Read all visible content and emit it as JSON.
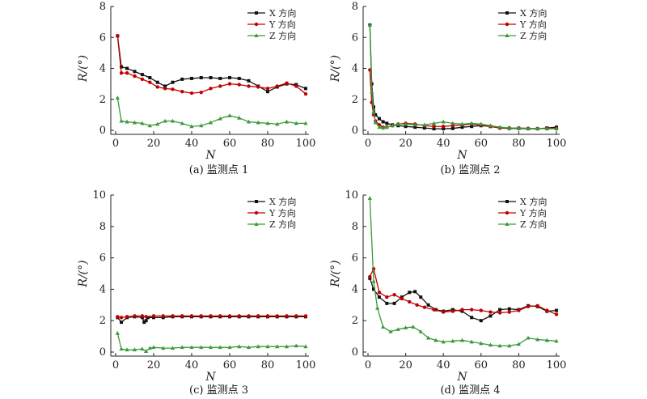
{
  "chart_data": [
    {
      "type": "line",
      "caption": "(a) 监测点 1",
      "xlabel": "N",
      "ylabel": "R/(°)",
      "xlim": [
        0,
        100
      ],
      "ylim": [
        0,
        8
      ],
      "xticks": [
        0,
        20,
        40,
        60,
        80,
        100
      ],
      "yticks": [
        0,
        2,
        4,
        6,
        8
      ],
      "legend_position": "top-right",
      "series": [
        {
          "name": "X 方向",
          "color": "#111111",
          "marker": "square",
          "x": [
            1,
            3,
            6,
            10,
            14,
            18,
            22,
            26,
            30,
            35,
            40,
            45,
            50,
            55,
            60,
            65,
            70,
            75,
            80,
            85,
            90,
            95,
            100
          ],
          "y": [
            6.1,
            4.1,
            4.0,
            3.8,
            3.6,
            3.4,
            3.1,
            2.85,
            3.1,
            3.3,
            3.35,
            3.4,
            3.4,
            3.35,
            3.4,
            3.35,
            3.2,
            2.85,
            2.5,
            2.8,
            3.0,
            2.95,
            2.7
          ]
        },
        {
          "name": "Y 方向",
          "color": "#c00000",
          "marker": "circle",
          "x": [
            1,
            3,
            6,
            10,
            14,
            18,
            22,
            26,
            30,
            35,
            40,
            45,
            50,
            55,
            60,
            65,
            70,
            75,
            80,
            85,
            90,
            95,
            100
          ],
          "y": [
            6.1,
            3.7,
            3.7,
            3.5,
            3.3,
            3.1,
            2.8,
            2.7,
            2.65,
            2.5,
            2.4,
            2.45,
            2.7,
            2.85,
            3.0,
            2.95,
            2.85,
            2.8,
            2.7,
            2.85,
            3.05,
            2.85,
            2.35
          ]
        },
        {
          "name": "Z 方向",
          "color": "#3a9a3a",
          "marker": "triangle",
          "x": [
            1,
            3,
            6,
            10,
            14,
            18,
            22,
            26,
            30,
            35,
            40,
            45,
            50,
            55,
            60,
            65,
            70,
            75,
            80,
            85,
            90,
            95,
            100
          ],
          "y": [
            2.1,
            0.6,
            0.55,
            0.5,
            0.45,
            0.3,
            0.4,
            0.6,
            0.6,
            0.45,
            0.25,
            0.3,
            0.5,
            0.75,
            0.95,
            0.8,
            0.55,
            0.5,
            0.45,
            0.4,
            0.55,
            0.45,
            0.45
          ]
        }
      ]
    },
    {
      "type": "line",
      "caption": "(b) 监测点 2",
      "xlabel": "N",
      "ylabel": "R/(°)",
      "xlim": [
        0,
        100
      ],
      "ylim": [
        0,
        8
      ],
      "xticks": [
        0,
        20,
        40,
        60,
        80,
        100
      ],
      "yticks": [
        0,
        2,
        4,
        6,
        8
      ],
      "legend_position": "top-right",
      "series": [
        {
          "name": "X 方向",
          "color": "#111111",
          "marker": "square",
          "x": [
            1,
            2,
            3,
            4,
            6,
            8,
            10,
            13,
            16,
            20,
            25,
            30,
            35,
            40,
            45,
            50,
            55,
            60,
            65,
            70,
            75,
            80,
            85,
            90,
            95,
            100
          ],
          "y": [
            6.8,
            3.0,
            1.5,
            1.0,
            0.75,
            0.55,
            0.45,
            0.35,
            0.3,
            0.25,
            0.2,
            0.15,
            0.1,
            0.1,
            0.12,
            0.2,
            0.25,
            0.3,
            0.25,
            0.15,
            0.12,
            0.12,
            0.1,
            0.1,
            0.15,
            0.2
          ]
        },
        {
          "name": "Y 方向",
          "color": "#c00000",
          "marker": "circle",
          "x": [
            1,
            2,
            3,
            4,
            6,
            8,
            10,
            13,
            16,
            20,
            25,
            30,
            35,
            40,
            45,
            50,
            55,
            60,
            65,
            70,
            75,
            80,
            85,
            90,
            95,
            100
          ],
          "y": [
            3.9,
            1.8,
            1.0,
            0.6,
            0.35,
            0.2,
            0.2,
            0.3,
            0.4,
            0.45,
            0.4,
            0.3,
            0.25,
            0.25,
            0.3,
            0.35,
            0.4,
            0.35,
            0.25,
            0.15,
            0.15,
            0.15,
            0.12,
            0.1,
            0.12,
            0.12
          ]
        },
        {
          "name": "Z 方向",
          "color": "#3a9a3a",
          "marker": "triangle",
          "x": [
            1,
            2,
            3,
            4,
            6,
            8,
            10,
            13,
            16,
            20,
            25,
            30,
            35,
            40,
            45,
            50,
            55,
            60,
            65,
            70,
            75,
            80,
            85,
            90,
            95,
            100
          ],
          "y": [
            6.8,
            2.5,
            1.2,
            0.5,
            0.2,
            0.15,
            0.2,
            0.3,
            0.4,
            0.4,
            0.35,
            0.35,
            0.45,
            0.55,
            0.45,
            0.4,
            0.45,
            0.4,
            0.3,
            0.2,
            0.15,
            0.15,
            0.12,
            0.12,
            0.1,
            0.1
          ]
        }
      ]
    },
    {
      "type": "line",
      "caption": "(c) 监测点 3",
      "xlabel": "N",
      "ylabel": "R/(°)",
      "xlim": [
        0,
        100
      ],
      "ylim": [
        0,
        10
      ],
      "xticks": [
        0,
        20,
        40,
        60,
        80,
        100
      ],
      "yticks": [
        0,
        2,
        4,
        6,
        8,
        10
      ],
      "legend_position": "top-right",
      "series": [
        {
          "name": "X 方向",
          "color": "#111111",
          "marker": "square",
          "x": [
            1,
            3,
            6,
            10,
            14,
            15,
            16,
            17,
            20,
            25,
            30,
            35,
            40,
            45,
            50,
            55,
            60,
            65,
            70,
            75,
            80,
            85,
            90,
            95,
            100
          ],
          "y": [
            2.2,
            1.9,
            2.2,
            2.25,
            2.2,
            1.9,
            2.0,
            2.2,
            2.2,
            2.2,
            2.25,
            2.25,
            2.25,
            2.25,
            2.25,
            2.25,
            2.25,
            2.25,
            2.25,
            2.25,
            2.25,
            2.25,
            2.25,
            2.25,
            2.25
          ]
        },
        {
          "name": "Y 方向",
          "color": "#c00000",
          "marker": "circle",
          "x": [
            1,
            3,
            6,
            10,
            14,
            16,
            20,
            25,
            30,
            35,
            40,
            45,
            50,
            55,
            60,
            65,
            70,
            75,
            80,
            85,
            90,
            95,
            100
          ],
          "y": [
            2.25,
            2.2,
            2.25,
            2.3,
            2.3,
            2.25,
            2.3,
            2.3,
            2.3,
            2.3,
            2.3,
            2.3,
            2.3,
            2.3,
            2.3,
            2.3,
            2.3,
            2.3,
            2.3,
            2.3,
            2.3,
            2.3,
            2.3
          ]
        },
        {
          "name": "Z 方向",
          "color": "#3a9a3a",
          "marker": "triangle",
          "x": [
            1,
            3,
            6,
            10,
            14,
            16,
            18,
            20,
            25,
            30,
            35,
            40,
            45,
            50,
            55,
            60,
            65,
            70,
            75,
            80,
            85,
            90,
            95,
            100
          ],
          "y": [
            1.2,
            0.2,
            0.15,
            0.15,
            0.2,
            0.05,
            0.25,
            0.3,
            0.25,
            0.25,
            0.3,
            0.3,
            0.3,
            0.3,
            0.3,
            0.3,
            0.35,
            0.3,
            0.35,
            0.35,
            0.35,
            0.35,
            0.4,
            0.35
          ]
        }
      ]
    },
    {
      "type": "line",
      "caption": "(d) 监测点 4",
      "xlabel": "N",
      "ylabel": "R/(°)",
      "xlim": [
        0,
        100
      ],
      "ylim": [
        0,
        10
      ],
      "xticks": [
        0,
        20,
        40,
        60,
        80,
        100
      ],
      "yticks": [
        0,
        2,
        4,
        6,
        8,
        10
      ],
      "legend_position": "top-right",
      "series": [
        {
          "name": "X 方向",
          "color": "#111111",
          "marker": "square",
          "x": [
            1,
            3,
            6,
            10,
            14,
            18,
            22,
            25,
            28,
            32,
            36,
            40,
            45,
            50,
            55,
            60,
            65,
            70,
            75,
            80,
            85,
            90,
            95,
            100
          ],
          "y": [
            4.7,
            4.0,
            3.5,
            3.1,
            3.1,
            3.5,
            3.8,
            3.85,
            3.5,
            3.0,
            2.7,
            2.6,
            2.7,
            2.6,
            2.2,
            2.0,
            2.3,
            2.7,
            2.75,
            2.7,
            2.95,
            2.9,
            2.6,
            2.65
          ]
        },
        {
          "name": "Y 方向",
          "color": "#c00000",
          "marker": "circle",
          "x": [
            1,
            3,
            6,
            10,
            14,
            18,
            22,
            26,
            30,
            35,
            40,
            45,
            50,
            55,
            60,
            65,
            70,
            75,
            80,
            85,
            90,
            95,
            100
          ],
          "y": [
            4.8,
            5.3,
            3.8,
            3.5,
            3.65,
            3.4,
            3.2,
            3.0,
            2.85,
            2.7,
            2.55,
            2.6,
            2.7,
            2.7,
            2.65,
            2.55,
            2.5,
            2.55,
            2.65,
            2.9,
            2.95,
            2.65,
            2.4
          ]
        },
        {
          "name": "Z 方向",
          "color": "#3a9a3a",
          "marker": "triangle",
          "x": [
            1,
            3,
            5,
            8,
            12,
            16,
            20,
            24,
            28,
            32,
            36,
            40,
            45,
            50,
            55,
            60,
            65,
            70,
            75,
            80,
            85,
            90,
            95,
            100
          ],
          "y": [
            9.8,
            4.5,
            2.8,
            1.6,
            1.3,
            1.45,
            1.55,
            1.6,
            1.3,
            0.9,
            0.75,
            0.65,
            0.7,
            0.75,
            0.65,
            0.55,
            0.45,
            0.4,
            0.4,
            0.5,
            0.9,
            0.8,
            0.75,
            0.7
          ]
        }
      ]
    }
  ]
}
